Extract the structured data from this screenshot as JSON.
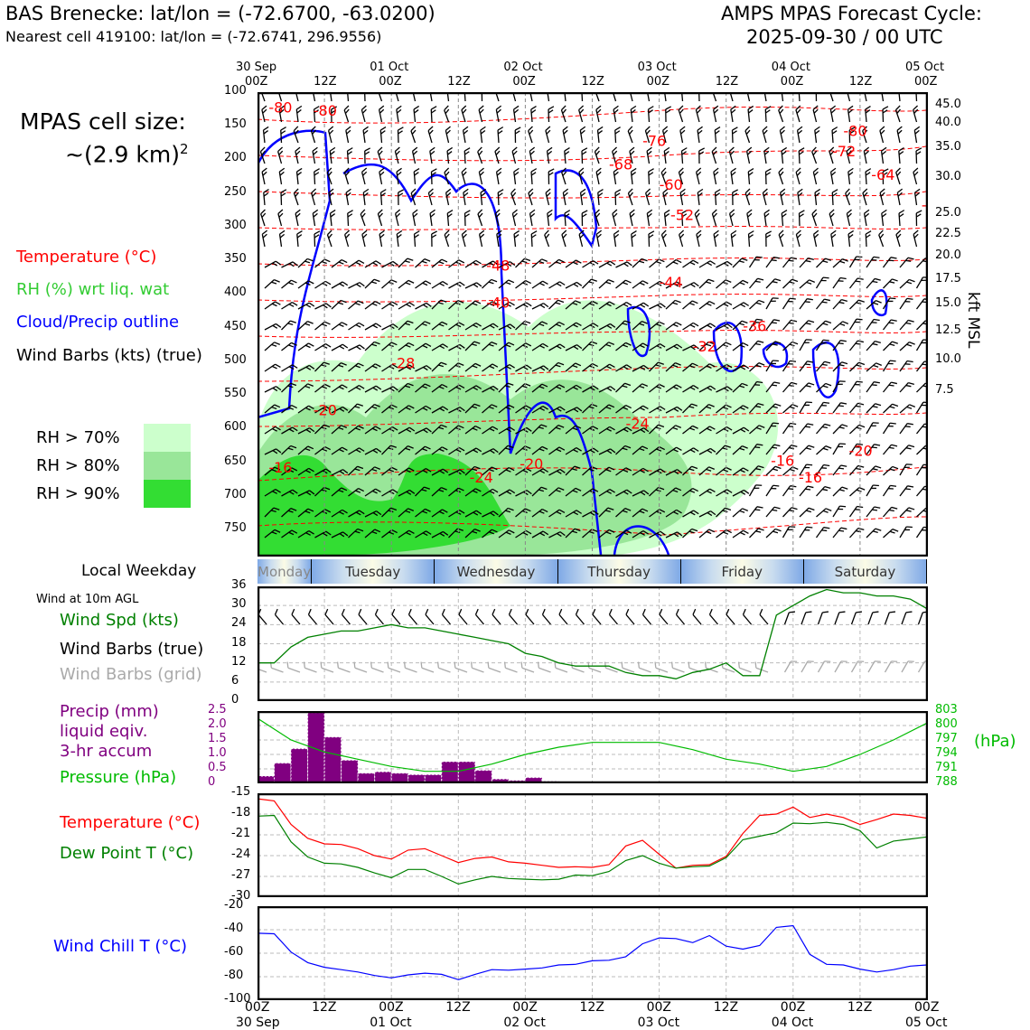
{
  "header": {
    "station_title": "BAS Brenecke: lat/lon = (-72.6700, -63.0200)",
    "nearest_cell": "Nearest cell 419100: lat/lon = (-72.6741, 296.9556)",
    "forecast_label": "AMPS MPAS Forecast Cycle:",
    "forecast_cycle": "2025-09-30 / 00 UTC"
  },
  "cell_size": {
    "label": "MPAS cell size:",
    "value": "~(2.9 km)",
    "exponent": "2"
  },
  "legend": {
    "temperature": "Temperature (°C)",
    "rh": "RH (%) wrt liq. wat",
    "cloud": "Cloud/Precip outline",
    "wind_barbs": "Wind Barbs (kts) (true)",
    "rh70": "RH > 70%",
    "rh80": "RH > 80%",
    "rh90": "RH > 90%"
  },
  "colors": {
    "temperature": "#ff0000",
    "rh_text": "#33cc33",
    "cloud": "#0000ff",
    "rh70": "#ccffcc",
    "rh80": "#99e699",
    "rh90": "#33dd33",
    "wind_spd": "#008000",
    "precip": "#800080",
    "pressure": "#00bb00",
    "dewpoint": "#008000",
    "windchill": "#0000ff",
    "grid_barbs": "#aaaaaa"
  },
  "weekday": {
    "label": "Local Weekday",
    "days": [
      "Monday",
      "Tuesday",
      "Wednesday",
      "Thursday",
      "Friday",
      "Saturday"
    ]
  },
  "time_axis": {
    "top_ticks": [
      "30 Sep\n00Z",
      "12Z",
      "01 Oct\n00Z",
      "12Z",
      "02 Oct\n00Z",
      "12Z",
      "03 Oct\n00Z",
      "12Z",
      "04 Oct\n00Z",
      "12Z",
      "05 Oct\n00Z"
    ],
    "bottom_hours": [
      "00Z",
      "12Z",
      "00Z",
      "12Z",
      "00Z",
      "12Z",
      "00Z",
      "12Z",
      "00Z",
      "12Z",
      "00Z"
    ],
    "bottom_dates": [
      "30 Sep",
      "",
      "01 Oct",
      "",
      "02 Oct",
      "",
      "03 Oct",
      "",
      "04 Oct",
      "",
      "05 Oct"
    ]
  },
  "wind10m": {
    "title": "Wind at 10m AGL",
    "spd_label": "Wind Spd (kts)",
    "barbs_label": "Wind Barbs (true)",
    "grid_label": "Wind Barbs (grid)"
  },
  "precip_panel": {
    "label_lines": [
      "Precip (mm)",
      "liquid eqiv.",
      "3-hr accum"
    ],
    "pressure_label": "Pressure (hPa)",
    "right_unit": "(hPa)"
  },
  "temp_panel": {
    "temp_label": "Temperature (°C)",
    "dew_label": "Dew Point T (°C)"
  },
  "chill_panel": {
    "label": "Wind Chill T (°C)"
  },
  "chart_data": [
    {
      "type": "contour",
      "title": "Vertical time-section",
      "ylabel": "Pressure (hPa)",
      "y2label": "kft MSL",
      "ylim": [
        100,
        790
      ],
      "yticks": [
        100,
        150,
        200,
        250,
        300,
        350,
        400,
        450,
        500,
        550,
        600,
        650,
        700,
        750
      ],
      "y2ticks": [
        {
          "label": "45.0",
          "p": 120
        },
        {
          "label": "40.0",
          "p": 147
        },
        {
          "label": "35.0",
          "p": 183
        },
        {
          "label": "30.0",
          "p": 227
        },
        {
          "label": "25.0",
          "p": 281
        },
        {
          "label": "22.5",
          "p": 312
        },
        {
          "label": "20.0",
          "p": 344
        },
        {
          "label": "17.5",
          "p": 379
        },
        {
          "label": "15.0",
          "p": 416
        },
        {
          "label": "12.5",
          "p": 456
        },
        {
          "label": "10.0",
          "p": 499
        },
        {
          "label": "7.5",
          "p": 545
        }
      ],
      "temperature_labels": [
        {
          "text": "-80",
          "hour": 2,
          "p": 130
        },
        {
          "text": "-80",
          "hour": 10,
          "p": 135
        },
        {
          "text": "-76",
          "hour": 69,
          "p": 180
        },
        {
          "text": "-68",
          "hour": 63,
          "p": 215
        },
        {
          "text": "-60",
          "hour": 72,
          "p": 245
        },
        {
          "text": "-52",
          "hour": 74,
          "p": 290
        },
        {
          "text": "-48",
          "hour": 41,
          "p": 365
        },
        {
          "text": "-44",
          "hour": 72,
          "p": 390
        },
        {
          "text": "-40",
          "hour": 41,
          "p": 420
        },
        {
          "text": "-36",
          "hour": 87,
          "p": 455
        },
        {
          "text": "-32",
          "hour": 78,
          "p": 485
        },
        {
          "text": "-28",
          "hour": 24,
          "p": 510
        },
        {
          "text": "-24",
          "hour": 66,
          "p": 600
        },
        {
          "text": "-20",
          "hour": 10,
          "p": 580
        },
        {
          "text": "-20",
          "hour": 47,
          "p": 660
        },
        {
          "text": "-24",
          "hour": 38,
          "p": 680
        },
        {
          "text": "-20",
          "hour": 106,
          "p": 640
        },
        {
          "text": "-16",
          "hour": 2,
          "p": 665
        },
        {
          "text": "-16",
          "hour": 92,
          "p": 655
        },
        {
          "text": "-16",
          "hour": 97,
          "p": 680
        },
        {
          "text": "-80",
          "hour": 105,
          "p": 165
        },
        {
          "text": "-72",
          "hour": 103,
          "p": 195
        },
        {
          "text": "-64",
          "hour": 110,
          "p": 230
        },
        {
          "text": "-5",
          "hour": 119,
          "p": 275
        }
      ]
    },
    {
      "type": "line",
      "title": "Wind at 10m AGL",
      "ylabel": "Wind Spd (kts)",
      "ylim": [
        0,
        36
      ],
      "yticks": [
        "0",
        "6",
        "12",
        "18",
        "24",
        "30",
        "36"
      ],
      "x_hours": [
        0,
        3,
        6,
        9,
        12,
        15,
        18,
        21,
        24,
        27,
        30,
        33,
        36,
        39,
        42,
        45,
        48,
        51,
        54,
        57,
        60,
        63,
        66,
        69,
        72,
        75,
        78,
        81,
        84,
        87,
        90,
        93,
        96,
        99,
        102,
        105,
        108,
        111,
        114,
        117,
        120
      ],
      "series": [
        {
          "name": "Wind Spd (kts)",
          "values": [
            12,
            12,
            17,
            20,
            21,
            22,
            22,
            23,
            24,
            23,
            23,
            22,
            21,
            20,
            19,
            18,
            15,
            14,
            12,
            11,
            11,
            11,
            9,
            8,
            8,
            7,
            9,
            10,
            12,
            8,
            8,
            27,
            30,
            33,
            35,
            34,
            34,
            33,
            33,
            32,
            29
          ]
        }
      ]
    },
    {
      "type": "bar",
      "title": "Precip (mm) 3-hr accum",
      "ylabel": "Precip (mm)",
      "ylim": [
        0,
        2.5
      ],
      "yticks": [
        "0",
        "0.5",
        "1.0",
        "1.5",
        "2.0",
        "2.5"
      ],
      "x_hours": [
        0,
        3,
        6,
        9,
        12,
        15,
        18,
        21,
        24,
        27,
        30,
        33,
        36,
        39,
        42,
        45,
        48,
        51,
        54,
        57,
        60,
        63,
        66,
        69,
        72,
        75,
        78,
        81,
        84,
        87,
        90,
        93,
        96,
        99,
        102,
        105,
        108,
        111,
        114,
        117
      ],
      "values": [
        0.25,
        0.7,
        1.2,
        2.45,
        1.6,
        0.8,
        0.35,
        0.4,
        0.35,
        0.3,
        0.3,
        0.75,
        0.75,
        0.45,
        0.15,
        0.1,
        0.2,
        0.07,
        0.05,
        0.02,
        0,
        0,
        0,
        0,
        0,
        0,
        0,
        0,
        0,
        0,
        0,
        0,
        0,
        0,
        0,
        0,
        0,
        0,
        0,
        0
      ]
    },
    {
      "type": "line",
      "title": "Pressure (hPa)",
      "ylabel": "Pressure (hPa)",
      "ylim": [
        788,
        803
      ],
      "yticks": [
        "788",
        "791",
        "794",
        "797",
        "800",
        "803"
      ],
      "x_hours": [
        0,
        6,
        12,
        18,
        24,
        30,
        36,
        42,
        48,
        54,
        60,
        66,
        72,
        78,
        84,
        90,
        96,
        102,
        108,
        114,
        120
      ],
      "series": [
        {
          "name": "Pressure (hPa)",
          "values": [
            801.5,
            797,
            794.5,
            793,
            791.5,
            790.5,
            790.5,
            792,
            794,
            795.5,
            796.5,
            796.5,
            796.5,
            795,
            793,
            792,
            790.5,
            791.5,
            794,
            797,
            800.5
          ]
        }
      ]
    },
    {
      "type": "line",
      "title": "Temperature / Dew Point",
      "ylabel": "°C",
      "ylim": [
        -30,
        -15
      ],
      "yticks": [
        "-30",
        "-27",
        "-24",
        "-21",
        "-18",
        "-15"
      ],
      "x_hours": [
        0,
        3,
        6,
        9,
        12,
        15,
        18,
        21,
        24,
        27,
        30,
        33,
        36,
        39,
        42,
        45,
        48,
        51,
        54,
        57,
        60,
        63,
        66,
        69,
        72,
        75,
        78,
        81,
        84,
        87,
        90,
        93,
        96,
        99,
        102,
        105,
        108,
        111,
        114,
        117,
        120
      ],
      "series": [
        {
          "name": "Temperature (°C)",
          "values": [
            -15.8,
            -16.1,
            -19.5,
            -21.5,
            -22.3,
            -22.4,
            -23,
            -24,
            -24.5,
            -23.2,
            -23,
            -24,
            -25,
            -24.4,
            -24.2,
            -24.9,
            -25.1,
            -25.4,
            -25.7,
            -25.6,
            -25.7,
            -25.3,
            -22.6,
            -21.8,
            -23.8,
            -25.8,
            -25.4,
            -25.3,
            -24.1,
            -20.8,
            -18.2,
            -18,
            -17,
            -18.5,
            -18,
            -18.5,
            -19.5,
            -18.8,
            -18,
            -18.2,
            -18.6
          ]
        },
        {
          "name": "Dew Point T (°C)",
          "values": [
            -18.3,
            -18.2,
            -22,
            -24.2,
            -25.1,
            -25.2,
            -25.7,
            -26.5,
            -27.2,
            -26,
            -26,
            -27,
            -28.1,
            -27.5,
            -27,
            -27.3,
            -27.4,
            -27.5,
            -27.4,
            -26.8,
            -26.9,
            -26.3,
            -24.7,
            -24,
            -25.1,
            -25.8,
            -25.6,
            -25.5,
            -24.3,
            -21.7,
            -21.2,
            -20.7,
            -19.3,
            -19.4,
            -19.2,
            -19.5,
            -20.4,
            -22.9,
            -21.9,
            -21.6,
            -21.3
          ]
        }
      ]
    },
    {
      "type": "line",
      "title": "Wind Chill T",
      "ylabel": "Wind Chill T (°C)",
      "ylim": [
        -100,
        -20
      ],
      "yticks": [
        "-100",
        "-80",
        "-60",
        "-40",
        "-20"
      ],
      "x_hours": [
        0,
        3,
        6,
        9,
        12,
        15,
        18,
        21,
        24,
        27,
        30,
        33,
        36,
        39,
        42,
        45,
        48,
        51,
        54,
        57,
        60,
        63,
        66,
        69,
        72,
        75,
        78,
        81,
        84,
        87,
        90,
        93,
        96,
        99,
        102,
        105,
        108,
        111,
        114,
        117,
        120
      ],
      "series": [
        {
          "name": "Wind Chill T (°C)",
          "values": [
            -43,
            -43.5,
            -59,
            -68,
            -72,
            -74,
            -76,
            -79,
            -81,
            -78.5,
            -77,
            -78,
            -82.5,
            -78,
            -74,
            -74.5,
            -73.5,
            -72.5,
            -70,
            -69.5,
            -66.5,
            -66,
            -63,
            -52,
            -47,
            -47.5,
            -51,
            -45,
            -54,
            -56.5,
            -53.5,
            -38,
            -36.5,
            -61,
            -69.5,
            -70,
            -73.5,
            -76,
            -74,
            -71,
            -70
          ]
        }
      ]
    }
  ]
}
